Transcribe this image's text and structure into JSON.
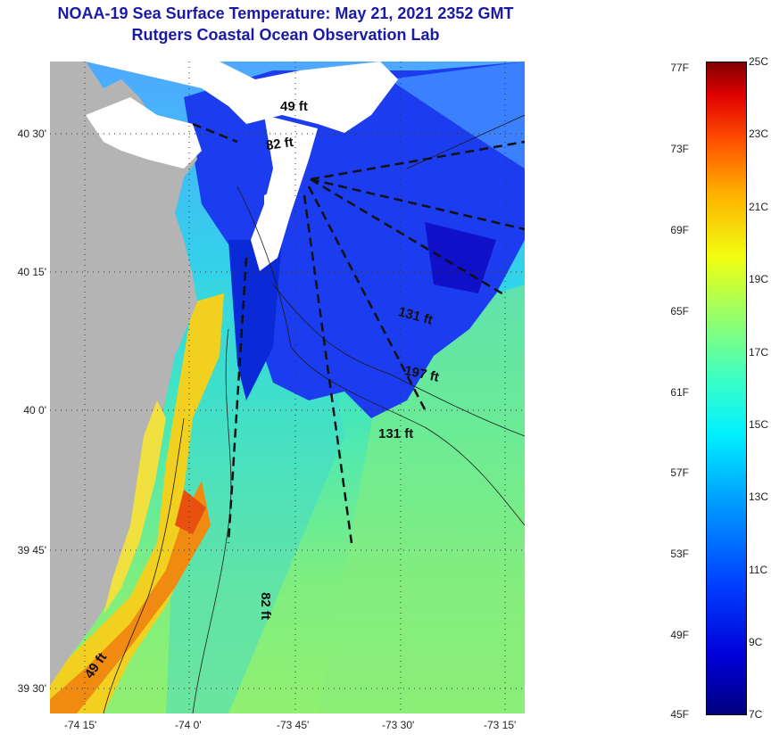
{
  "title": "NOAA-19 Sea Surface Temperature:  May 21, 2021 2352 GMT",
  "subtitle": "Rutgers Coastal Ocean Observation Lab",
  "lat_ticks": [
    "40 30'",
    "40 15'",
    "40 0'",
    "39 45'",
    "39 30'"
  ],
  "lon_ticks": [
    "-74 15'",
    "-74 0'",
    "-73 45'",
    "-73 30'",
    "-73 15'"
  ],
  "depth_labels": [
    "49 ft",
    "82 ft",
    "131 ft",
    "197 ft",
    "131 ft",
    "82 ft",
    "49 ft"
  ],
  "colorbar": {
    "fahrenheit": [
      "77F",
      "73F",
      "69F",
      "65F",
      "61F",
      "57F",
      "53F",
      "49F",
      "45F"
    ],
    "celsius": [
      "25C",
      "23C",
      "21C",
      "19C",
      "17C",
      "15C",
      "13C",
      "11C",
      "9C",
      "7C"
    ]
  },
  "colors": {
    "title": "#1a1aa6",
    "land": "#b4b4b4",
    "cloud": "#ffffff"
  }
}
